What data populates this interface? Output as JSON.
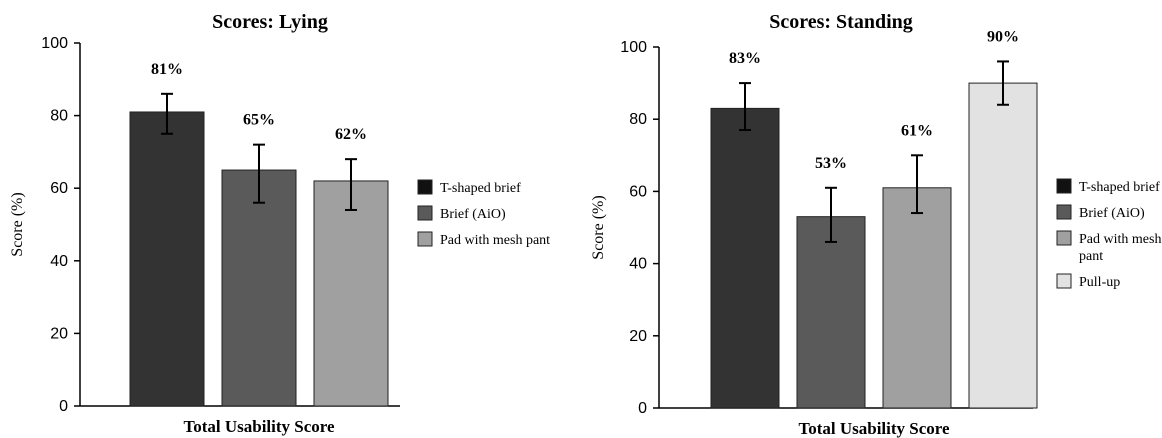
{
  "chart_data": [
    {
      "type": "bar",
      "title": "Scores: Lying",
      "xlabel": "Total Usability Score",
      "ylabel": "Score (%)",
      "ylim": [
        0,
        100
      ],
      "yticks": [
        0,
        20,
        40,
        60,
        80,
        100
      ],
      "grid": false,
      "legend_position": "right",
      "categories": [
        "T-shaped brief",
        "Brief (AiO)",
        "Pad with mesh pant"
      ],
      "values": [
        81,
        65,
        62
      ],
      "error_low": [
        75,
        56,
        54
      ],
      "error_high": [
        86,
        72,
        68
      ],
      "data_labels": [
        "81%",
        "65%",
        "62%"
      ],
      "legend": [
        "T-shaped brief",
        "Brief (AiO)",
        "Pad with mesh pant"
      ],
      "colors": [
        "#333333",
        "#5a5a5a",
        "#a0a0a0"
      ]
    },
    {
      "type": "bar",
      "title": "Scores: Standing",
      "xlabel": "Total Usability Score",
      "ylabel": "Score (%)",
      "ylim": [
        0,
        100
      ],
      "yticks": [
        0,
        20,
        40,
        60,
        80,
        100
      ],
      "grid": false,
      "legend_position": "right",
      "categories": [
        "T-shaped brief",
        "Brief (AiO)",
        "Pad with mesh pant",
        "Pull-up"
      ],
      "values": [
        83,
        53,
        61,
        90
      ],
      "error_low": [
        77,
        46,
        54,
        84
      ],
      "error_high": [
        90,
        61,
        70,
        96
      ],
      "data_labels": [
        "83%",
        "53%",
        "61%",
        "90%"
      ],
      "legend": [
        "T-shaped brief",
        "Brief (AiO)",
        "Pad with mesh\npant",
        "Pull-up"
      ],
      "colors": [
        "#333333",
        "#5a5a5a",
        "#a0a0a0",
        "#e2e2e2"
      ]
    }
  ]
}
